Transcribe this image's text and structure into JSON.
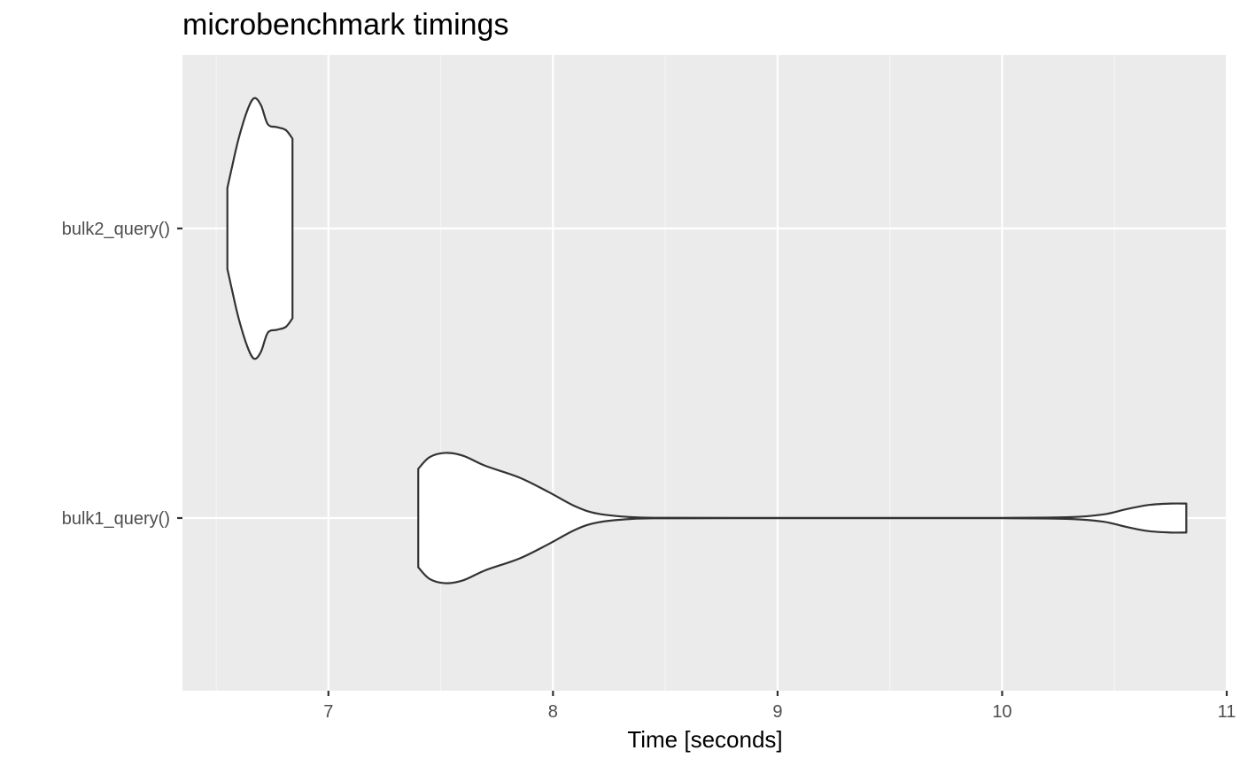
{
  "chart_data": {
    "type": "violin",
    "title": "microbenchmark timings",
    "xlabel": "Time [seconds]",
    "ylabel": "",
    "orientation": "horizontal",
    "xlim": [
      6.35,
      11.0
    ],
    "x_ticks": [
      7,
      8,
      9,
      10,
      11
    ],
    "x_tick_labels": [
      "7",
      "8",
      "9",
      "10",
      "11"
    ],
    "categories": [
      "bulk2_query()",
      "bulk1_query()"
    ],
    "grid": true,
    "legend": "none",
    "colors": {
      "panel_background": "#EBEBEB",
      "grid_major": "#FFFFFF",
      "grid_minor": "#F5F5F5",
      "violin_fill": "#FFFFFF",
      "violin_outline": "#333333",
      "tick_text": "#4D4D4D"
    },
    "series": [
      {
        "category": "bulk2_query()",
        "x": [
          6.55,
          6.57,
          6.6,
          6.64,
          6.67,
          6.7,
          6.73,
          6.77,
          6.81,
          6.84
        ],
        "half_width": [
          0.28,
          0.42,
          0.62,
          0.82,
          0.9,
          0.85,
          0.72,
          0.7,
          0.68,
          0.62
        ]
      },
      {
        "category": "bulk1_query()",
        "x": [
          7.4,
          7.45,
          7.52,
          7.6,
          7.7,
          7.85,
          7.98,
          8.1,
          8.2,
          8.35,
          8.5,
          9.0,
          9.5,
          10.0,
          10.3,
          10.45,
          10.55,
          10.65,
          10.75,
          10.82
        ],
        "half_width": [
          0.34,
          0.42,
          0.45,
          0.43,
          0.36,
          0.28,
          0.18,
          0.08,
          0.03,
          0.006,
          0.0015,
          0.0008,
          0.0008,
          0.0012,
          0.006,
          0.025,
          0.06,
          0.09,
          0.1,
          0.1
        ]
      }
    ]
  }
}
